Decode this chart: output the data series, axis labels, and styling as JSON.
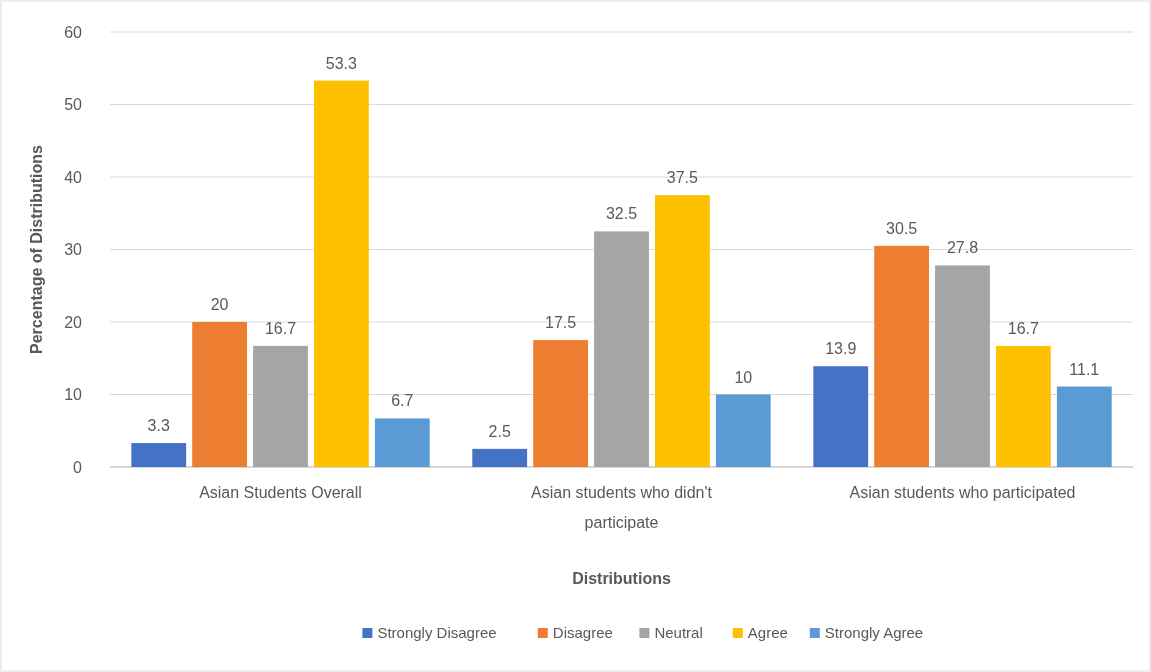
{
  "chart_data": {
    "type": "bar",
    "xlabel": "Distributions",
    "ylabel": "Percentage of Distributions",
    "categories": [
      "Asian Students Overall",
      "Asian students who didn't participate",
      "Asian students who participated"
    ],
    "series": [
      {
        "name": "Strongly Disagree",
        "color": "#4472c4",
        "values": [
          3.3,
          2.5,
          13.9
        ]
      },
      {
        "name": "Disagree",
        "color": "#ed7d31",
        "values": [
          20,
          17.5,
          30.5
        ]
      },
      {
        "name": "Neutral",
        "color": "#a5a5a5",
        "values": [
          16.7,
          32.5,
          27.8
        ]
      },
      {
        "name": "Agree",
        "color": "#ffc000",
        "values": [
          53.3,
          37.5,
          16.7
        ]
      },
      {
        "name": "Strongly Agree",
        "color": "#5b9bd5",
        "values": [
          6.7,
          10,
          11.1
        ]
      }
    ],
    "ylim": [
      0,
      60
    ],
    "yticks": [
      0,
      10,
      20,
      30,
      40,
      50,
      60
    ],
    "grid": "y",
    "legend": "bottom",
    "data_labels": true
  }
}
